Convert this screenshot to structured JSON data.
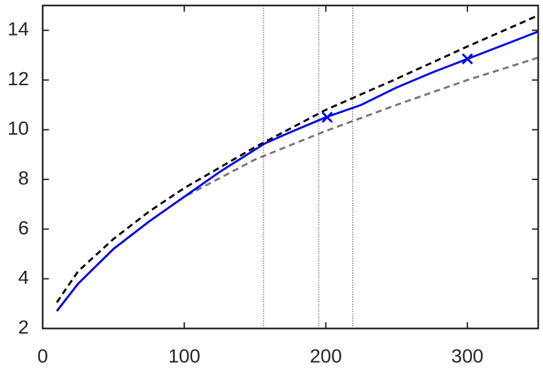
{
  "chart_data": {
    "type": "line",
    "xlim": [
      0,
      350
    ],
    "ylim": [
      2,
      15
    ],
    "xticks": [
      0,
      100,
      200,
      300
    ],
    "yticks": [
      2,
      4,
      6,
      8,
      10,
      12,
      14
    ],
    "vlines": [
      156,
      195,
      219
    ],
    "series": [
      {
        "color": "#000000",
        "dash": "dashed",
        "x": [
          10,
          25,
          50,
          75,
          100,
          150,
          200,
          250,
          300,
          350
        ],
        "values": [
          3.05,
          4.3,
          5.6,
          6.7,
          7.65,
          9.3,
          10.8,
          12.05,
          13.35,
          14.6
        ]
      },
      {
        "color": "#777777",
        "dash": "dashed",
        "x": [
          10,
          25,
          50,
          75,
          100,
          150,
          200,
          250,
          300,
          350
        ],
        "values": [
          2.7,
          3.8,
          5.2,
          6.3,
          7.3,
          8.8,
          9.95,
          11.0,
          12.0,
          12.9
        ]
      },
      {
        "color": "#0000ee",
        "dash": "solid",
        "x": [
          10,
          25,
          50,
          75,
          100,
          125,
          157,
          175,
          200,
          225,
          250,
          275,
          300,
          325,
          350
        ],
        "values": [
          2.7,
          3.8,
          5.2,
          6.3,
          7.3,
          8.3,
          9.45,
          9.9,
          10.5,
          11.0,
          11.7,
          12.3,
          12.85,
          13.4,
          13.95
        ]
      },
      {
        "color": "#0000ee",
        "marker": "x",
        "x": [
          201,
          300
        ],
        "values": [
          10.5,
          12.85
        ]
      }
    ]
  }
}
